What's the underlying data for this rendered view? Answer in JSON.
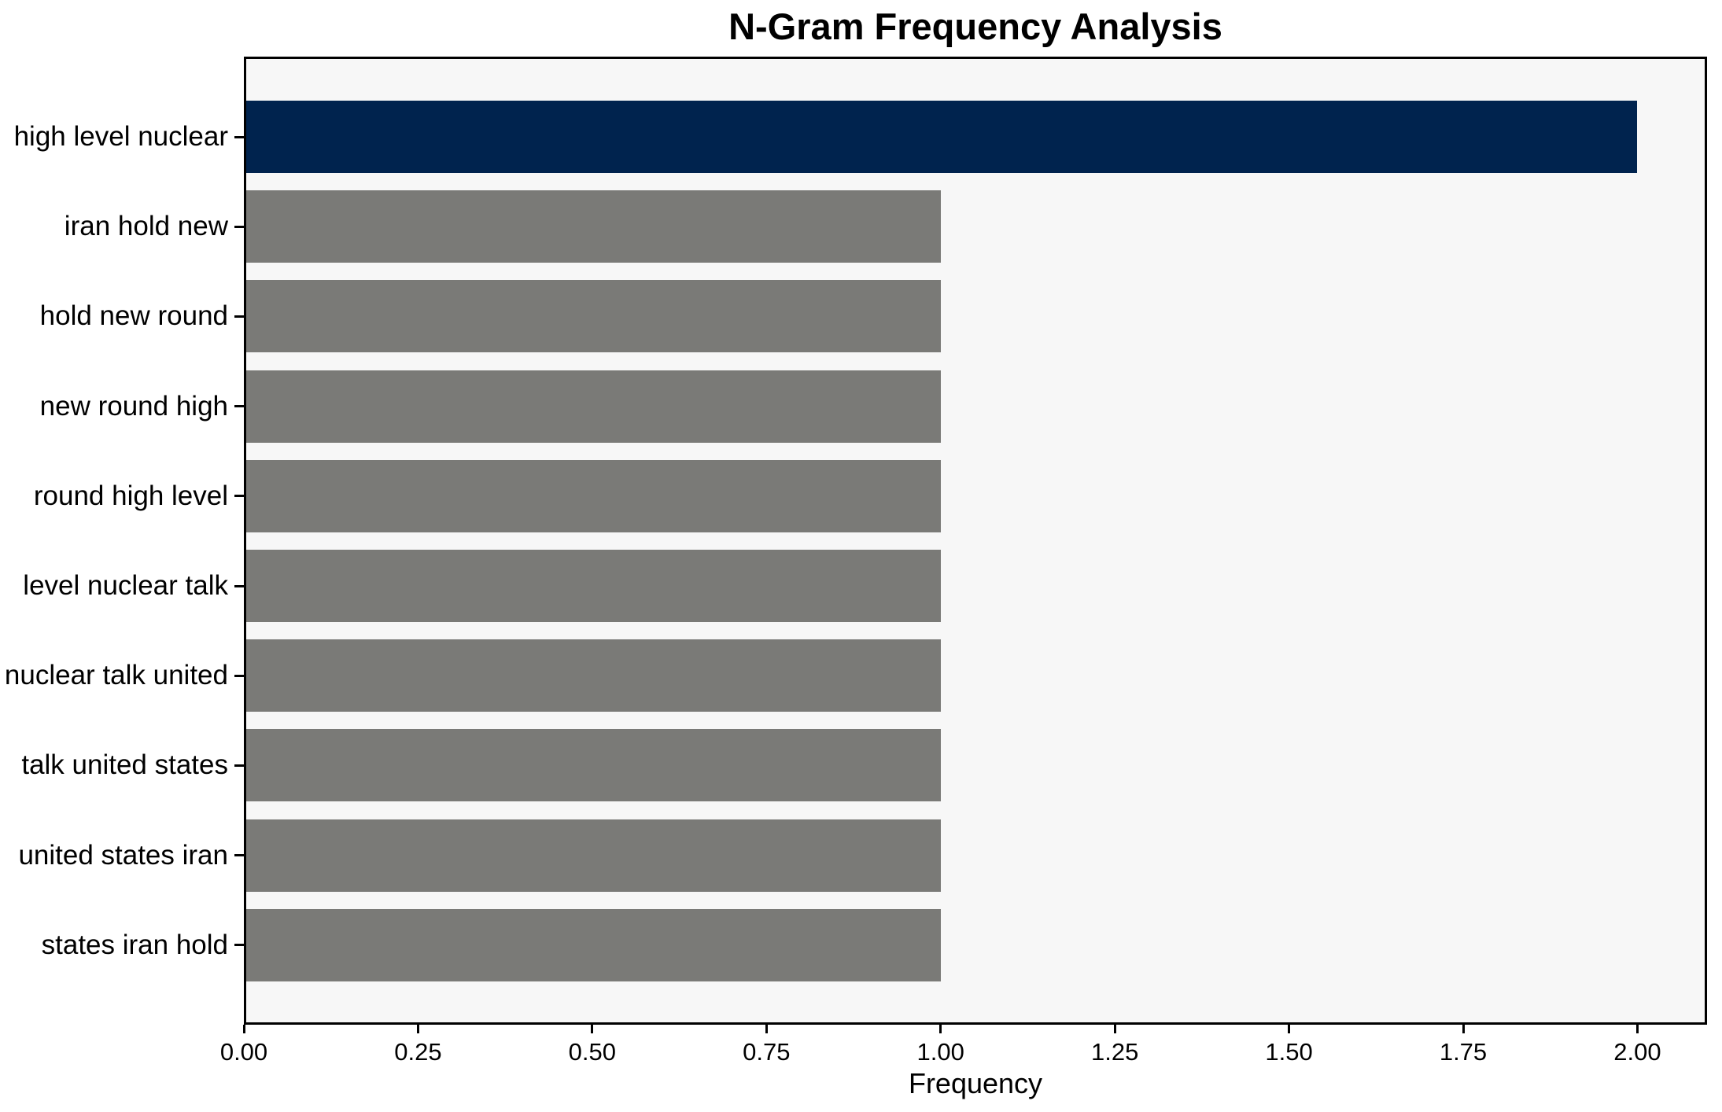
{
  "chart_data": {
    "type": "bar",
    "orientation": "horizontal",
    "title": "N-Gram Frequency Analysis",
    "xlabel": "Frequency",
    "ylabel": "",
    "categories": [
      "high level nuclear",
      "iran hold new",
      "hold new round",
      "new round high",
      "round high level",
      "level nuclear talk",
      "nuclear talk united",
      "talk united states",
      "united states iran",
      "states iran hold"
    ],
    "values": [
      2,
      1,
      1,
      1,
      1,
      1,
      1,
      1,
      1,
      1
    ],
    "xlim": [
      0,
      2.1
    ],
    "xticks": [
      0,
      0.25,
      0.5,
      0.75,
      1.0,
      1.25,
      1.5,
      1.75,
      2.0
    ],
    "xtick_labels": [
      "0.00",
      "0.25",
      "0.50",
      "0.75",
      "1.00",
      "1.25",
      "1.50",
      "1.75",
      "2.00"
    ],
    "grid": false,
    "legend": "none",
    "highlight_index": 0,
    "colors": {
      "highlight_bar": "#00234e",
      "default_bar": "#7a7a77",
      "plot_background": "#f7f7f7",
      "figure_background": "#ffffff",
      "axis": "#000000",
      "text": "#000000"
    }
  }
}
